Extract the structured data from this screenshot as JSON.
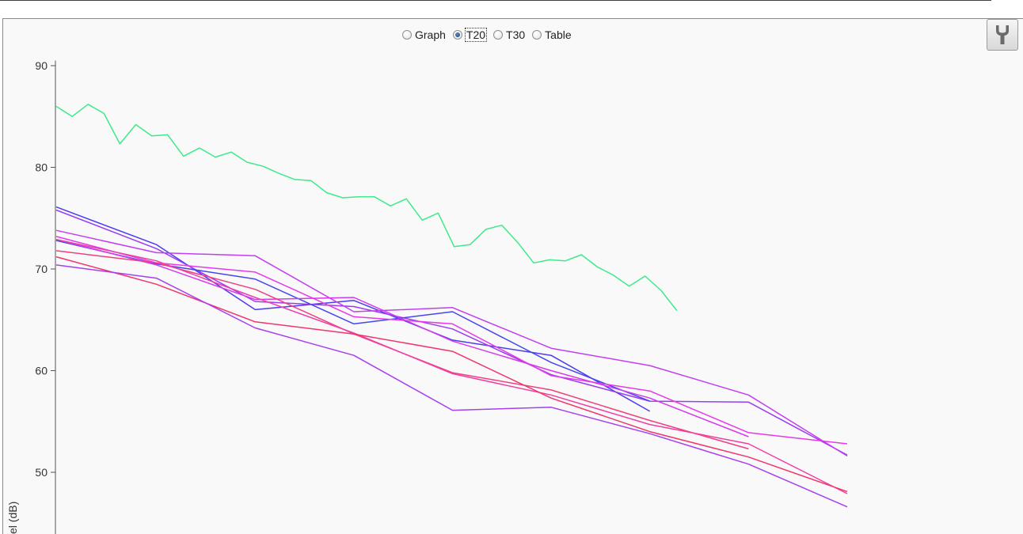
{
  "view_modes": [
    {
      "label": "Graph",
      "checked": false
    },
    {
      "label": "T20",
      "checked": true
    },
    {
      "label": "T30",
      "checked": false
    },
    {
      "label": "Table",
      "checked": false
    }
  ],
  "toolbar": {
    "settings_icon": "wrench-icon"
  },
  "chart_data": {
    "type": "line",
    "ylabel": "el (dB)",
    "ylim": [
      44,
      90.5
    ],
    "y_ticks": [
      "90",
      "80",
      "70",
      "60",
      "50"
    ],
    "grid": false,
    "series": [
      {
        "color": "#3dea8c",
        "points": [
          [
            0,
            86.0
          ],
          [
            1,
            85.0
          ],
          [
            2,
            86.2
          ],
          [
            3,
            85.3
          ],
          [
            4,
            82.3
          ],
          [
            5,
            84.2
          ],
          [
            6,
            83.1
          ],
          [
            7,
            83.2
          ],
          [
            8,
            81.1
          ],
          [
            9,
            81.9
          ],
          [
            10,
            81.0
          ],
          [
            11,
            81.5
          ],
          [
            12,
            80.5
          ],
          [
            13,
            80.1
          ],
          [
            14,
            79.4
          ],
          [
            15,
            78.8
          ],
          [
            16,
            78.7
          ],
          [
            17,
            77.5
          ],
          [
            18,
            77.0
          ],
          [
            19,
            77.1
          ],
          [
            20,
            77.1
          ],
          [
            21,
            76.2
          ],
          [
            22,
            76.9
          ],
          [
            23,
            74.8
          ],
          [
            24,
            75.5
          ],
          [
            25,
            72.2
          ],
          [
            26,
            72.4
          ],
          [
            27,
            73.9
          ],
          [
            28,
            74.3
          ],
          [
            29,
            72.6
          ],
          [
            30,
            70.6
          ],
          [
            31,
            70.9
          ],
          [
            32,
            70.8
          ],
          [
            33,
            71.4
          ],
          [
            34,
            70.2
          ],
          [
            35,
            69.4
          ],
          [
            36,
            68.3
          ],
          [
            37,
            69.3
          ],
          [
            38,
            67.9
          ],
          [
            39,
            65.9
          ]
        ]
      },
      {
        "color": "#4b3cf0",
        "points": [
          [
            0,
            76.1
          ],
          [
            6.3,
            72.4
          ],
          [
            12.5,
            66.0
          ],
          [
            18.7,
            66.9
          ],
          [
            24.9,
            63.0
          ],
          [
            31.1,
            61.5
          ],
          [
            37.3,
            56.0
          ]
        ]
      },
      {
        "color": "#9a3df0",
        "points": [
          [
            0,
            75.8
          ],
          [
            6.3,
            72.0
          ],
          [
            12.5,
            66.8
          ],
          [
            18.7,
            66.3
          ],
          [
            24.9,
            64.1
          ],
          [
            31.1,
            59.6
          ],
          [
            37.3,
            57.0
          ],
          [
            43.5,
            56.9
          ],
          [
            49.7,
            51.7
          ]
        ]
      },
      {
        "color": "#c23ef0",
        "points": [
          [
            0,
            73.8
          ],
          [
            6.3,
            71.6
          ],
          [
            12.5,
            71.3
          ],
          [
            18.7,
            65.8
          ],
          [
            24.9,
            66.2
          ],
          [
            31.1,
            62.2
          ],
          [
            37.3,
            60.5
          ],
          [
            43.5,
            57.6
          ],
          [
            49.7,
            51.6
          ]
        ]
      },
      {
        "color": "#4646ee",
        "points": [
          [
            0,
            72.8
          ],
          [
            6.3,
            70.5
          ],
          [
            12.5,
            69.0
          ],
          [
            18.7,
            64.6
          ],
          [
            24.9,
            65.8
          ],
          [
            31.1,
            60.8
          ],
          [
            37.3,
            57.0
          ]
        ]
      },
      {
        "color": "#e63ae8",
        "points": [
          [
            0,
            73.2
          ],
          [
            6.3,
            70.6
          ],
          [
            12.5,
            69.7
          ],
          [
            18.7,
            65.3
          ],
          [
            24.9,
            64.6
          ],
          [
            31.1,
            59.5
          ],
          [
            37.3,
            58.0
          ],
          [
            43.5,
            53.9
          ],
          [
            49.7,
            52.8
          ]
        ]
      },
      {
        "color": "#d43aec",
        "points": [
          [
            0,
            72.9
          ],
          [
            6.3,
            70.4
          ],
          [
            12.5,
            67.0
          ],
          [
            18.7,
            67.2
          ],
          [
            24.9,
            62.9
          ],
          [
            31.1,
            60.0
          ],
          [
            37.3,
            57.3
          ],
          [
            43.5,
            53.5
          ]
        ]
      },
      {
        "color": "#f0407e",
        "points": [
          [
            0,
            71.8
          ],
          [
            6.3,
            70.6
          ],
          [
            12.5,
            68.0
          ],
          [
            18.7,
            63.6
          ],
          [
            24.9,
            59.8
          ],
          [
            31.1,
            58.1
          ],
          [
            37.3,
            55.1
          ],
          [
            43.5,
            52.3
          ]
        ]
      },
      {
        "color": "#ee3fa6",
        "points": [
          [
            0,
            72.9
          ],
          [
            6.3,
            70.8
          ],
          [
            12.5,
            67.2
          ],
          [
            18.7,
            63.7
          ],
          [
            24.9,
            59.7
          ],
          [
            31.1,
            57.6
          ],
          [
            37.3,
            54.7
          ],
          [
            43.5,
            52.8
          ],
          [
            49.7,
            47.9
          ]
        ]
      },
      {
        "color": "#f0366a",
        "points": [
          [
            0,
            71.2
          ],
          [
            6.3,
            68.5
          ],
          [
            12.5,
            64.8
          ],
          [
            18.7,
            63.6
          ],
          [
            24.9,
            61.9
          ],
          [
            31.1,
            57.3
          ],
          [
            37.3,
            54.0
          ],
          [
            43.5,
            51.5
          ],
          [
            49.7,
            48.1
          ]
        ]
      },
      {
        "color": "#a63ff0",
        "points": [
          [
            0,
            70.4
          ],
          [
            6.3,
            69.1
          ],
          [
            12.5,
            64.2
          ],
          [
            18.7,
            61.5
          ],
          [
            24.9,
            56.1
          ],
          [
            31.1,
            56.4
          ],
          [
            37.3,
            53.8
          ],
          [
            43.5,
            50.8
          ],
          [
            49.7,
            46.6
          ]
        ]
      }
    ]
  }
}
